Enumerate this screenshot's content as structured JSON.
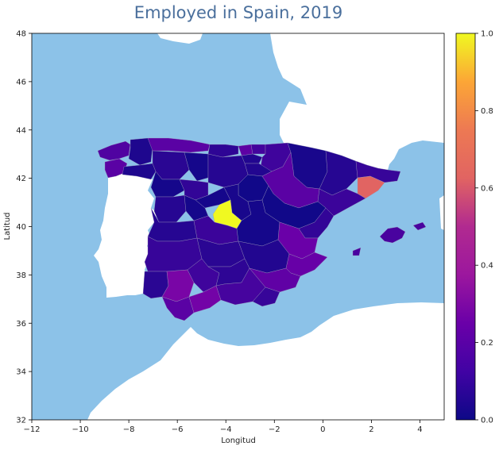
{
  "title": "Employed in Spain, 2019",
  "chart_data": {
    "type": "choropleth",
    "title": "Employed in Spain, 2019",
    "xlabel": "Longitud",
    "ylabel": "Latitud",
    "xlim": [
      -12,
      5
    ],
    "ylim": [
      32,
      48
    ],
    "x_ticks": [
      -12,
      -10,
      -8,
      -6,
      -4,
      -2,
      0,
      2,
      4
    ],
    "y_ticks": [
      32,
      34,
      36,
      38,
      40,
      42,
      44,
      46,
      48
    ],
    "colorbar": {
      "colormap": "plasma",
      "range": [
        0,
        1
      ],
      "ticks": [
        0.0,
        0.2,
        0.4,
        0.6,
        0.8,
        1.0
      ],
      "tick_labels": [
        "0.0",
        "0.2",
        "0.4",
        "0.6",
        "0.8",
        "1.0"
      ]
    },
    "colors": {
      "sea": "#8cc2e8",
      "land_other": "#ffffff"
    },
    "regions": [
      {
        "id": "madrid",
        "value": 1.0
      },
      {
        "id": "barcelona",
        "value": 0.75
      },
      {
        "id": "sevilla",
        "value": 0.3
      },
      {
        "id": "malaga",
        "value": 0.28
      },
      {
        "id": "valencia",
        "value": 0.25
      },
      {
        "id": "alicante",
        "value": 0.24
      },
      {
        "id": "murcia",
        "value": 0.22
      },
      {
        "id": "asturias",
        "value": 0.2
      },
      {
        "id": "vizcaya",
        "value": 0.21
      },
      {
        "id": "zaragoza",
        "value": 0.2
      },
      {
        "id": "pontevedra",
        "value": 0.2
      },
      {
        "id": "cadiz",
        "value": 0.2
      },
      {
        "id": "a_coruna",
        "value": 0.17
      },
      {
        "id": "baleares",
        "value": 0.15
      },
      {
        "id": "granada",
        "value": 0.14
      },
      {
        "id": "cordoba",
        "value": 0.12
      },
      {
        "id": "navarra",
        "value": 0.12
      },
      {
        "id": "toledo",
        "value": 0.11
      },
      {
        "id": "badajoz",
        "value": 0.1
      },
      {
        "id": "almeria",
        "value": 0.1
      },
      {
        "id": "guipuzcoa",
        "value": 0.13
      },
      {
        "id": "jaen",
        "value": 0.08
      },
      {
        "id": "valladolid",
        "value": 0.09
      },
      {
        "id": "castellon",
        "value": 0.09
      },
      {
        "id": "tarragona",
        "value": 0.11
      },
      {
        "id": "girona",
        "value": 0.1
      },
      {
        "id": "leon",
        "value": 0.07
      },
      {
        "id": "burgos",
        "value": 0.06
      },
      {
        "id": "caceres",
        "value": 0.06
      },
      {
        "id": "lleida",
        "value": 0.06
      },
      {
        "id": "ciudad_real",
        "value": 0.07
      },
      {
        "id": "salamanca",
        "value": 0.06
      },
      {
        "id": "huelva",
        "value": 0.07
      },
      {
        "id": "la_rioja",
        "value": 0.05
      },
      {
        "id": "cantabria",
        "value": 0.08
      },
      {
        "id": "lugo",
        "value": 0.04
      },
      {
        "id": "ourense",
        "value": 0.04
      },
      {
        "id": "alava",
        "value": 0.05
      },
      {
        "id": "albacete",
        "value": 0.05
      },
      {
        "id": "huesca",
        "value": 0.03
      },
      {
        "id": "zamora",
        "value": 0.02
      },
      {
        "id": "palencia",
        "value": 0.02
      },
      {
        "id": "guadalajara",
        "value": 0.03
      },
      {
        "id": "cuenca",
        "value": 0.02
      },
      {
        "id": "segovia",
        "value": 0.02
      },
      {
        "id": "avila",
        "value": 0.02
      },
      {
        "id": "soria",
        "value": 0.01
      },
      {
        "id": "teruel",
        "value": 0.01
      }
    ]
  }
}
